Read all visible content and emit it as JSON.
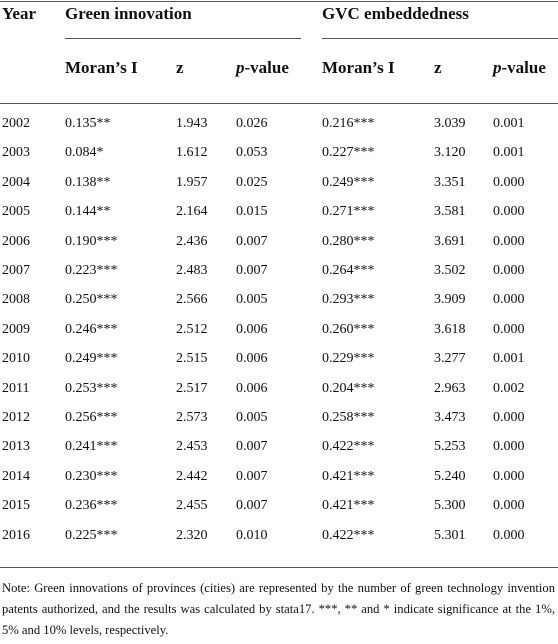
{
  "table": {
    "year_header": "Year",
    "groups": [
      "Green innovation",
      "GVC embeddedness"
    ],
    "subheaders": [
      "Moran’s I",
      "z",
      [
        "p",
        "-value"
      ],
      "Moran’s I",
      "z",
      [
        "p",
        "-value"
      ]
    ],
    "rows": [
      [
        "2002",
        "0.135**",
        "1.943",
        "0.026",
        "0.216***",
        "3.039",
        "0.001"
      ],
      [
        "2003",
        "0.084*",
        "1.612",
        "0.053",
        "0.227***",
        "3.120",
        "0.001"
      ],
      [
        "2004",
        "0.138**",
        "1.957",
        "0.025",
        "0.249***",
        "3.351",
        "0.000"
      ],
      [
        "2005",
        "0.144**",
        "2.164",
        "0.015",
        "0.271***",
        "3.581",
        "0.000"
      ],
      [
        "2006",
        "0.190***",
        "2.436",
        "0.007",
        "0.280***",
        "3.691",
        "0.000"
      ],
      [
        "2007",
        "0.223***",
        "2.483",
        "0.007",
        "0.264***",
        "3.502",
        "0.000"
      ],
      [
        "2008",
        "0.250***",
        "2.566",
        "0.005",
        "0.293***",
        "3.909",
        "0.000"
      ],
      [
        "2009",
        "0.246***",
        "2.512",
        "0.006",
        "0.260***",
        "3.618",
        "0.000"
      ],
      [
        "2010",
        "0.249***",
        "2.515",
        "0.006",
        "0.229***",
        "3.277",
        "0.001"
      ],
      [
        "2011",
        "0.253***",
        "2.517",
        "0.006",
        "0.204***",
        "2.963",
        "0.002"
      ],
      [
        "2012",
        "0.256***",
        "2.573",
        "0.005",
        "0.258***",
        "3.473",
        "0.000"
      ],
      [
        "2013",
        "0.241***",
        "2.453",
        "0.007",
        "0.422***",
        "5.253",
        "0.000"
      ],
      [
        "2014",
        "0.230***",
        "2.442",
        "0.007",
        "0.421***",
        "5.240",
        "0.000"
      ],
      [
        "2015",
        "0.236***",
        "2.455",
        "0.007",
        "0.421***",
        "5.300",
        "0.000"
      ],
      [
        "2016",
        "0.225***",
        "2.320",
        "0.010",
        "0.422***",
        "5.301",
        "0.000"
      ]
    ]
  },
  "note": "Note: Green innovations of provinces (cities) are represented by the number of green technology invention patents authorized, and the results was calculated by stata17. ***, ** and * indicate significance at the 1%, 5% and 10% levels, respectively."
}
